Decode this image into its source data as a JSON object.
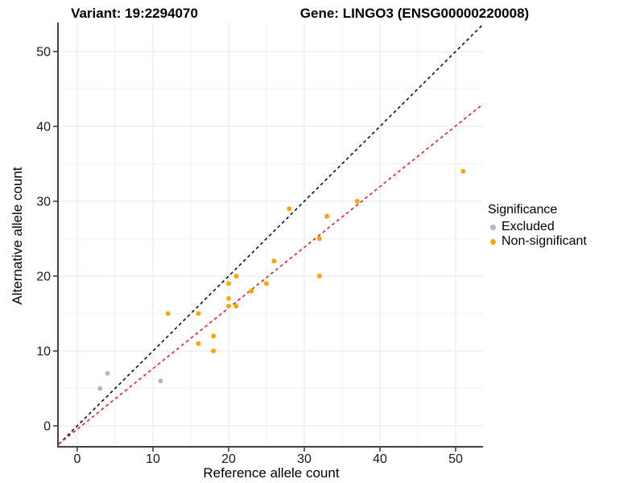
{
  "titles": {
    "variant": "Variant: 19:2294070",
    "gene": "Gene: LINGO3 (ENSG00000220008)"
  },
  "chart_data": {
    "type": "scatter",
    "xlabel": "Reference allele count",
    "ylabel": "Alternative allele count",
    "x_ticks": [
      0,
      10,
      20,
      30,
      40,
      50
    ],
    "y_ticks": [
      0,
      10,
      20,
      30,
      40,
      50
    ],
    "minor_ticks": [
      5,
      15,
      25,
      35,
      45
    ],
    "xlim": [
      -2.4,
      53.6
    ],
    "ylim": [
      -2.7,
      53.9
    ],
    "grid": "major-and-minor, light gray on white",
    "legend_position": "right",
    "legend": {
      "title": "Significance",
      "entries": [
        {
          "label": "Excluded",
          "color": "#b7b7b7"
        },
        {
          "label": "Non-significant",
          "color": "#ffa500"
        }
      ]
    },
    "series": [
      {
        "name": "Excluded",
        "color": "#b7b7b7",
        "points": [
          [
            3,
            5
          ],
          [
            4,
            7
          ],
          [
            11,
            6
          ]
        ]
      },
      {
        "name": "Non-significant",
        "color": "#ffa500",
        "points": [
          [
            12,
            15
          ],
          [
            16,
            11
          ],
          [
            16,
            15
          ],
          [
            18,
            10
          ],
          [
            18,
            12
          ],
          [
            20,
            16
          ],
          [
            20,
            17
          ],
          [
            20,
            19
          ],
          [
            21,
            16
          ],
          [
            21,
            20
          ],
          [
            23,
            18
          ],
          [
            25,
            19
          ],
          [
            26,
            22
          ],
          [
            28,
            29
          ],
          [
            32,
            20
          ],
          [
            32,
            25
          ],
          [
            33,
            28
          ],
          [
            37,
            30
          ],
          [
            51,
            34
          ]
        ]
      }
    ],
    "lines": [
      {
        "name": "identity",
        "color": "#111111",
        "dash": true,
        "slope": 1,
        "intercept": 0
      },
      {
        "name": "fit",
        "color": "#e32222",
        "dash": true,
        "slope": 0.81,
        "intercept": -0.45
      }
    ]
  }
}
